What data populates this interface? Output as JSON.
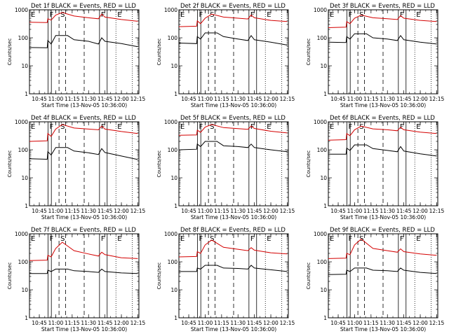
{
  "chart_data": {
    "type": "line",
    "series_colors": {
      "events": "#000000",
      "lld": "#d40000"
    },
    "xlabel": "Start Time (13-Nov-05 10:36:00)",
    "ylabel": "Counts/sec",
    "y_scale": "log",
    "ylim": [
      1,
      1000
    ],
    "y_ticks": [
      "1",
      "10",
      "100",
      "1000"
    ],
    "xlim": [
      "10:36",
      "12:16"
    ],
    "x_ticks": [
      "10:45",
      "11:00",
      "11:15",
      "11:30",
      "11:45",
      "12:00",
      "12:15"
    ],
    "interval_markers": [
      {
        "label": "E",
        "time": "10:36",
        "style": "solid"
      },
      {
        "label": "F",
        "time": "10:53",
        "style": "solid"
      },
      {
        "label": "",
        "time": "10:56",
        "style": "solid"
      },
      {
        "label": "S",
        "time": "11:03",
        "style": "dashed"
      },
      {
        "label": "",
        "time": "11:09",
        "style": "dashed"
      },
      {
        "label": "",
        "time": "11:26",
        "style": "dashed"
      },
      {
        "label": "F",
        "time": "11:40",
        "style": "solid"
      },
      {
        "label": "",
        "time": "11:47",
        "style": "solid"
      },
      {
        "label": "E",
        "time": "11:55",
        "style": "dotted"
      },
      {
        "label": "",
        "time": "12:10",
        "style": "dotted"
      }
    ],
    "panels": [
      {
        "title": "Det 1f BLACK = Events, RED = LLD",
        "events": [
          [
            10.6,
            45
          ],
          [
            10.87,
            44
          ],
          [
            10.88,
            80
          ],
          [
            10.93,
            60
          ],
          [
            11.0,
            120
          ],
          [
            11.18,
            120
          ],
          [
            11.28,
            85
          ],
          [
            11.5,
            75
          ],
          [
            11.65,
            60
          ],
          [
            11.7,
            100
          ],
          [
            11.75,
            75
          ],
          [
            12.0,
            62
          ],
          [
            12.25,
            48
          ]
        ],
        "lld": [
          [
            10.6,
            360
          ],
          [
            10.87,
            350
          ],
          [
            10.88,
            480
          ],
          [
            10.93,
            430
          ],
          [
            11.0,
            650
          ],
          [
            11.1,
            800
          ],
          [
            11.28,
            600
          ],
          [
            11.5,
            520
          ],
          [
            11.65,
            480
          ],
          [
            11.7,
            700
          ],
          [
            11.75,
            550
          ],
          [
            12.0,
            450
          ],
          [
            12.25,
            390
          ]
        ]
      },
      {
        "title": "Det 2f BLACK = Events, RED = LLD",
        "events": [
          [
            10.6,
            65
          ],
          [
            10.87,
            62
          ],
          [
            10.88,
            110
          ],
          [
            10.93,
            90
          ],
          [
            11.0,
            150
          ],
          [
            11.18,
            150
          ],
          [
            11.28,
            110
          ],
          [
            11.5,
            90
          ],
          [
            11.65,
            80
          ],
          [
            11.7,
            120
          ],
          [
            11.75,
            85
          ],
          [
            12.0,
            70
          ],
          [
            12.25,
            55
          ]
        ],
        "lld": [
          [
            10.6,
            250
          ],
          [
            10.87,
            260
          ],
          [
            10.88,
            400
          ],
          [
            10.93,
            320
          ],
          [
            11.0,
            500
          ],
          [
            11.1,
            700
          ],
          [
            11.28,
            550
          ],
          [
            11.5,
            500
          ],
          [
            11.65,
            470
          ],
          [
            11.7,
            650
          ],
          [
            11.75,
            520
          ],
          [
            12.0,
            420
          ],
          [
            12.25,
            380
          ]
        ]
      },
      {
        "title": "Det 3f BLACK = Events, RED = LLD",
        "events": [
          [
            10.6,
            70
          ],
          [
            10.87,
            68
          ],
          [
            10.88,
            110
          ],
          [
            10.93,
            90
          ],
          [
            11.0,
            140
          ],
          [
            11.18,
            140
          ],
          [
            11.28,
            100
          ],
          [
            11.5,
            90
          ],
          [
            11.65,
            80
          ],
          [
            11.7,
            120
          ],
          [
            11.75,
            85
          ],
          [
            12.0,
            70
          ],
          [
            12.25,
            60
          ]
        ],
        "lld": [
          [
            10.6,
            230
          ],
          [
            10.87,
            240
          ],
          [
            10.88,
            380
          ],
          [
            10.93,
            320
          ],
          [
            11.0,
            500
          ],
          [
            11.1,
            650
          ],
          [
            11.28,
            520
          ],
          [
            11.5,
            480
          ],
          [
            11.65,
            450
          ],
          [
            11.7,
            620
          ],
          [
            11.75,
            500
          ],
          [
            12.0,
            420
          ],
          [
            12.25,
            380
          ]
        ]
      },
      {
        "title": "Det 4f BLACK = Events, RED = LLD",
        "events": [
          [
            10.6,
            48
          ],
          [
            10.87,
            46
          ],
          [
            10.88,
            85
          ],
          [
            10.93,
            65
          ],
          [
            11.0,
            120
          ],
          [
            11.18,
            120
          ],
          [
            11.28,
            90
          ],
          [
            11.5,
            78
          ],
          [
            11.65,
            68
          ],
          [
            11.7,
            110
          ],
          [
            11.75,
            80
          ],
          [
            12.0,
            60
          ],
          [
            12.25,
            45
          ]
        ],
        "lld": [
          [
            10.6,
            200
          ],
          [
            10.87,
            210
          ],
          [
            10.88,
            380
          ],
          [
            10.93,
            300
          ],
          [
            11.0,
            550
          ],
          [
            11.1,
            800
          ],
          [
            11.28,
            600
          ],
          [
            11.5,
            550
          ],
          [
            11.65,
            520
          ],
          [
            11.7,
            700
          ],
          [
            11.75,
            550
          ],
          [
            12.0,
            450
          ],
          [
            12.25,
            380
          ]
        ]
      },
      {
        "title": "Det 5f BLACK = Events, RED = LLD",
        "events": [
          [
            10.6,
            100
          ],
          [
            10.87,
            105
          ],
          [
            10.88,
            160
          ],
          [
            10.93,
            130
          ],
          [
            11.0,
            200
          ],
          [
            11.18,
            200
          ],
          [
            11.28,
            140
          ],
          [
            11.5,
            130
          ],
          [
            11.65,
            120
          ],
          [
            11.7,
            160
          ],
          [
            11.75,
            120
          ],
          [
            12.0,
            100
          ],
          [
            12.25,
            85
          ]
        ],
        "lld": [
          [
            10.6,
            330
          ],
          [
            10.87,
            340
          ],
          [
            10.88,
            500
          ],
          [
            10.93,
            420
          ],
          [
            11.0,
            650
          ],
          [
            11.1,
            800
          ],
          [
            11.28,
            620
          ],
          [
            11.5,
            570
          ],
          [
            11.65,
            540
          ],
          [
            11.7,
            700
          ],
          [
            11.75,
            580
          ],
          [
            12.0,
            460
          ],
          [
            12.25,
            400
          ]
        ]
      },
      {
        "title": "Det 6f BLACK = Events, RED = LLD",
        "events": [
          [
            10.6,
            70
          ],
          [
            10.87,
            70
          ],
          [
            10.88,
            115
          ],
          [
            10.93,
            95
          ],
          [
            11.0,
            150
          ],
          [
            11.18,
            150
          ],
          [
            11.28,
            110
          ],
          [
            11.5,
            95
          ],
          [
            11.65,
            85
          ],
          [
            11.7,
            130
          ],
          [
            11.75,
            90
          ],
          [
            12.0,
            72
          ],
          [
            12.25,
            60
          ]
        ],
        "lld": [
          [
            10.6,
            220
          ],
          [
            10.87,
            230
          ],
          [
            10.88,
            380
          ],
          [
            10.93,
            320
          ],
          [
            11.0,
            520
          ],
          [
            11.1,
            700
          ],
          [
            11.28,
            560
          ],
          [
            11.5,
            520
          ],
          [
            11.65,
            480
          ],
          [
            11.7,
            640
          ],
          [
            11.75,
            520
          ],
          [
            12.0,
            430
          ],
          [
            12.25,
            380
          ]
        ]
      },
      {
        "title": "Det 7f BLACK = Events, RED = LLD",
        "events": [
          [
            10.6,
            38
          ],
          [
            10.87,
            38
          ],
          [
            10.88,
            50
          ],
          [
            10.93,
            45
          ],
          [
            11.0,
            55
          ],
          [
            11.18,
            55
          ],
          [
            11.28,
            48
          ],
          [
            11.5,
            45
          ],
          [
            11.65,
            42
          ],
          [
            11.7,
            55
          ],
          [
            11.75,
            45
          ],
          [
            12.0,
            40
          ],
          [
            12.25,
            38
          ]
        ],
        "lld": [
          [
            10.6,
            110
          ],
          [
            10.87,
            115
          ],
          [
            10.88,
            170
          ],
          [
            10.93,
            150
          ],
          [
            11.0,
            300
          ],
          [
            11.1,
            500
          ],
          [
            11.28,
            250
          ],
          [
            11.5,
            190
          ],
          [
            11.65,
            160
          ],
          [
            11.7,
            220
          ],
          [
            11.75,
            180
          ],
          [
            12.0,
            140
          ],
          [
            12.25,
            130
          ]
        ]
      },
      {
        "title": "Det 8f BLACK = Events, RED = LLD",
        "events": [
          [
            10.6,
            45
          ],
          [
            10.87,
            45
          ],
          [
            10.88,
            60
          ],
          [
            10.93,
            55
          ],
          [
            11.0,
            75
          ],
          [
            11.18,
            75
          ],
          [
            11.28,
            60
          ],
          [
            11.5,
            58
          ],
          [
            11.65,
            55
          ],
          [
            11.7,
            75
          ],
          [
            11.75,
            60
          ],
          [
            12.0,
            52
          ],
          [
            12.25,
            45
          ]
        ],
        "lld": [
          [
            10.6,
            150
          ],
          [
            10.87,
            155
          ],
          [
            10.88,
            230
          ],
          [
            10.93,
            200
          ],
          [
            11.0,
            400
          ],
          [
            11.1,
            600
          ],
          [
            11.28,
            330
          ],
          [
            11.5,
            280
          ],
          [
            11.65,
            250
          ],
          [
            11.7,
            320
          ],
          [
            11.75,
            260
          ],
          [
            12.0,
            210
          ],
          [
            12.25,
            190
          ]
        ]
      },
      {
        "title": "Det 9f BLACK = Events, RED = LLD",
        "events": [
          [
            10.6,
            35
          ],
          [
            10.87,
            36
          ],
          [
            10.88,
            50
          ],
          [
            10.93,
            45
          ],
          [
            11.0,
            60
          ],
          [
            11.18,
            60
          ],
          [
            11.28,
            50
          ],
          [
            11.5,
            48
          ],
          [
            11.65,
            45
          ],
          [
            11.7,
            60
          ],
          [
            11.75,
            50
          ],
          [
            12.0,
            42
          ],
          [
            12.25,
            38
          ]
        ],
        "lld": [
          [
            10.6,
            130
          ],
          [
            10.87,
            135
          ],
          [
            10.88,
            200
          ],
          [
            10.93,
            180
          ],
          [
            11.0,
            400
          ],
          [
            11.1,
            650
          ],
          [
            11.28,
            300
          ],
          [
            11.5,
            250
          ],
          [
            11.65,
            220
          ],
          [
            11.7,
            290
          ],
          [
            11.75,
            230
          ],
          [
            12.0,
            190
          ],
          [
            12.25,
            170
          ]
        ]
      }
    ]
  }
}
